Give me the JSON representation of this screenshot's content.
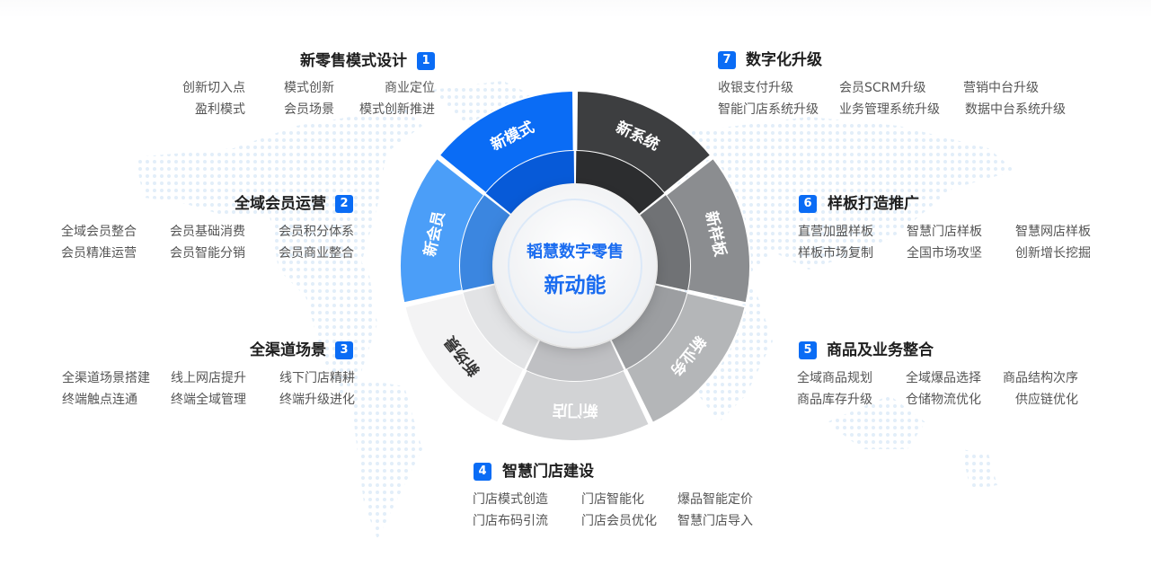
{
  "colors": {
    "accent": "#0a6cf5",
    "segments": [
      "#0a6cf5",
      "#3d3e40",
      "#8b8d90",
      "#b4b6b8",
      "#d2d3d5",
      "#f3f3f4",
      "#4b9ef8"
    ],
    "segments_inner": [
      "#075ad8",
      "#2c2d2f",
      "#707275",
      "#9c9ea1",
      "#bfc0c3",
      "#e2e3e5",
      "#3b86e0"
    ],
    "segment_text": [
      "#ffffff",
      "#ffffff",
      "#ffffff",
      "#ffffff",
      "#ffffff",
      "#333333",
      "#ffffff"
    ]
  },
  "center": {
    "line1": "韬慧数字零售",
    "line2": "新动能"
  },
  "segments": [
    "新模式",
    "新系统",
    "新样板",
    "新业务",
    "新门店",
    "新场景",
    "新会员"
  ],
  "sections": [
    {
      "num": "1",
      "title": "新零售模式设计",
      "items": [
        "创新切入点",
        "模式创新",
        "商业定位",
        "盈利模式",
        "会员场景",
        "模式创新推进"
      ]
    },
    {
      "num": "2",
      "title": "全域会员运营",
      "items": [
        "全域会员整合",
        "会员基础消费",
        "会员积分体系",
        "会员精准运营",
        "会员智能分销",
        "会员商业整合"
      ]
    },
    {
      "num": "3",
      "title": "全渠道场景",
      "items": [
        "全渠道场景搭建",
        "线上网店提升",
        "线下门店精耕",
        "终端触点连通",
        "终端全域管理",
        "终端升级进化"
      ]
    },
    {
      "num": "4",
      "title": "智慧门店建设",
      "items": [
        "门店模式创造",
        "门店智能化",
        "爆品智能定价",
        "门店布码引流",
        "门店会员优化",
        "智慧门店导入"
      ]
    },
    {
      "num": "5",
      "title": "商品及业务整合",
      "items": [
        "全域商品规划",
        "全域爆品选择",
        "商品结构次序",
        "商品库存升级",
        "仓储物流优化",
        "供应链优化"
      ]
    },
    {
      "num": "6",
      "title": "样板打造推广",
      "items": [
        "直营加盟样板",
        "智慧门店样板",
        "智慧网店样板",
        "样板市场复制",
        "全国市场攻坚",
        "创新增长挖掘"
      ]
    },
    {
      "num": "7",
      "title": "数字化升级",
      "items": [
        "收银支付升级",
        "会员SCRM升级",
        "营销中台升级",
        "智能门店系统升级",
        "业务管理系统升级",
        "数据中台系统升级"
      ]
    }
  ]
}
